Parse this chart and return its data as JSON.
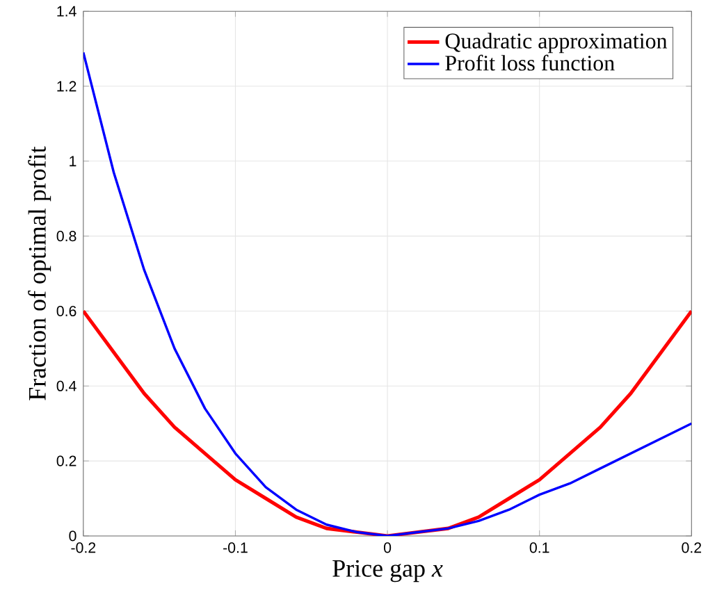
{
  "chart_data": {
    "type": "line",
    "xlabel": "Price gap *x*",
    "ylabel": "Fraction of optimal profit",
    "xlim": [
      -0.2,
      0.2
    ],
    "ylim": [
      0,
      1.4
    ],
    "xticks": [
      -0.2,
      -0.1,
      0,
      0.1,
      0.2
    ],
    "yticks": [
      0,
      0.2,
      0.4,
      0.6,
      0.8,
      1,
      1.2,
      1.4
    ],
    "grid": true,
    "legend": "top right",
    "marker": "none",
    "line_style": "solid",
    "series": [
      {
        "name": "Quadratic approximation",
        "color": "#ff0000",
        "x": [
          -0.2,
          -0.18,
          -0.16,
          -0.14,
          -0.12,
          -0.1,
          -0.08,
          -0.06,
          -0.04,
          -0.02,
          0,
          0.02,
          0.04,
          0.06,
          0.08,
          0.1,
          0.12,
          0.14,
          0.16,
          0.18,
          0.2
        ],
        "values": [
          0.6,
          0.49,
          0.38,
          0.29,
          0.22,
          0.15,
          0.1,
          0.05,
          0.02,
          0.01,
          0,
          0.01,
          0.02,
          0.05,
          0.1,
          0.15,
          0.22,
          0.29,
          0.38,
          0.49,
          0.6
        ]
      },
      {
        "name": "Profit loss function",
        "color": "#0000ff",
        "x": [
          -0.2,
          -0.18,
          -0.16,
          -0.14,
          -0.12,
          -0.1,
          -0.08,
          -0.06,
          -0.04,
          -0.02,
          0,
          0.02,
          0.04,
          0.06,
          0.08,
          0.1,
          0.12,
          0.14,
          0.16,
          0.18,
          0.2
        ],
        "values": [
          1.29,
          0.97,
          0.71,
          0.5,
          0.34,
          0.22,
          0.13,
          0.07,
          0.03,
          0.01,
          0,
          0.01,
          0.02,
          0.04,
          0.07,
          0.11,
          0.14,
          0.18,
          0.22,
          0.26,
          0.3
        ]
      }
    ]
  }
}
